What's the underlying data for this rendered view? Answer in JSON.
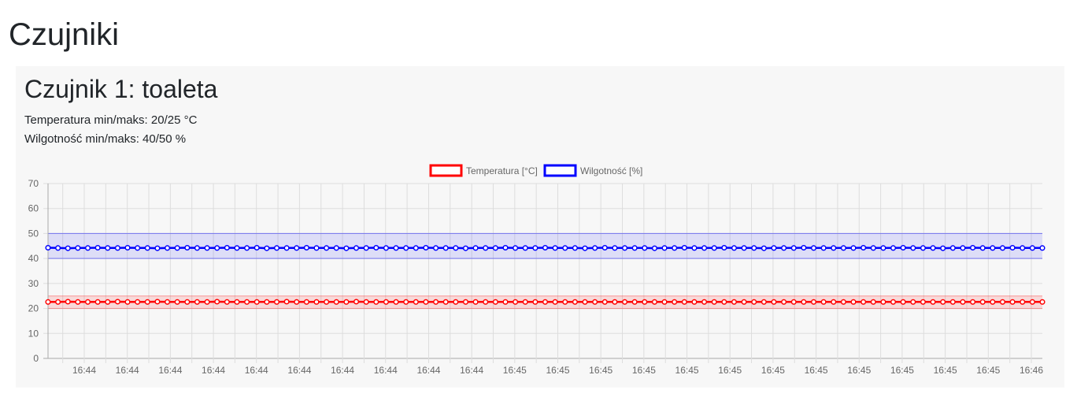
{
  "page": {
    "title": "Czujniki"
  },
  "sensor": {
    "title": "Czujnik 1: toaleta",
    "temp_range_label": "Temperatura min/maks: 20/25 °C",
    "humidity_range_label": "Wilgotność min/maks: 40/50 %"
  },
  "colors": {
    "temperature": "#ff0000",
    "humidity": "#0000ff",
    "temperature_band": "rgba(255,0,0,0.12)",
    "humidity_band": "rgba(0,0,255,0.10)",
    "grid": "#dddddd"
  },
  "chart_data": {
    "type": "line",
    "title": "",
    "xlabel": "",
    "ylabel": "",
    "ylim": [
      0,
      70
    ],
    "yticks": [
      0,
      10,
      20,
      30,
      40,
      50,
      60,
      70
    ],
    "legend_position": "top-center",
    "grid": true,
    "x_tick_labels": [
      "16:44",
      "16:44",
      "16:44",
      "16:44",
      "16:44",
      "16:44",
      "16:44",
      "16:44",
      "16:44",
      "16:44",
      "16:45",
      "16:45",
      "16:45",
      "16:45",
      "16:45",
      "16:45",
      "16:45",
      "16:45",
      "16:45",
      "16:45",
      "16:45",
      "16:45",
      "16:46"
    ],
    "bands": [
      {
        "series": "Temperatura [°C]",
        "min": 20,
        "max": 25
      },
      {
        "series": "Wilgotność [%]",
        "min": 40,
        "max": 50
      }
    ],
    "series": [
      {
        "name": "Temperatura [°C]",
        "values": [
          22.6,
          22.6,
          22.7,
          22.6,
          22.6,
          22.6,
          22.6,
          22.7,
          22.6,
          22.6,
          22.6,
          22.7,
          22.6,
          22.6,
          22.6,
          22.6,
          22.6,
          22.7,
          22.6,
          22.6,
          22.6,
          22.6,
          22.6,
          22.6,
          22.7,
          22.6,
          22.6,
          22.6,
          22.6,
          22.6,
          22.6,
          22.7,
          22.6,
          22.6,
          22.6,
          22.6,
          22.6,
          22.6,
          22.6,
          22.6,
          22.6,
          22.6,
          22.6,
          22.6,
          22.6,
          22.6,
          22.6,
          22.6,
          22.6,
          22.6,
          22.6,
          22.6,
          22.6,
          22.6,
          22.6,
          22.6,
          22.6,
          22.6,
          22.6,
          22.6,
          22.6,
          22.6,
          22.6,
          22.6,
          22.6,
          22.6,
          22.6,
          22.6,
          22.6,
          22.6,
          22.6,
          22.6,
          22.6,
          22.6,
          22.6,
          22.6,
          22.6,
          22.6,
          22.6,
          22.6,
          22.6,
          22.6,
          22.6,
          22.6,
          22.6,
          22.6,
          22.6,
          22.6,
          22.6,
          22.6,
          22.6,
          22.6,
          22.6,
          22.6,
          22.6,
          22.6,
          22.6,
          22.6,
          22.6,
          22.6,
          22.6
        ]
      },
      {
        "name": "Wilgotność [%]",
        "values": [
          44.3,
          44.2,
          44.1,
          44.2,
          44.2,
          44.3,
          44.2,
          44.2,
          44.3,
          44.2,
          44.2,
          44.1,
          44.2,
          44.2,
          44.3,
          44.2,
          44.2,
          44.2,
          44.3,
          44.2,
          44.2,
          44.3,
          44.1,
          44.2,
          44.2,
          44.2,
          44.3,
          44.2,
          44.2,
          44.2,
          44.1,
          44.2,
          44.2,
          44.3,
          44.2,
          44.2,
          44.2,
          44.2,
          44.3,
          44.2,
          44.2,
          44.2,
          44.1,
          44.2,
          44.2,
          44.2,
          44.3,
          44.2,
          44.2,
          44.2,
          44.3,
          44.2,
          44.2,
          44.2,
          44.1,
          44.2,
          44.3,
          44.2,
          44.2,
          44.2,
          44.2,
          44.1,
          44.2,
          44.2,
          44.3,
          44.2,
          44.2,
          44.2,
          44.3,
          44.2,
          44.2,
          44.2,
          44.1,
          44.2,
          44.2,
          44.2,
          44.3,
          44.2,
          44.2,
          44.2,
          44.2,
          44.2,
          44.3,
          44.2,
          44.2,
          44.2,
          44.3,
          44.2,
          44.2,
          44.2,
          44.1,
          44.2,
          44.2,
          44.3,
          44.2,
          44.2,
          44.2,
          44.3,
          44.2,
          44.2,
          44.2
        ]
      }
    ]
  }
}
